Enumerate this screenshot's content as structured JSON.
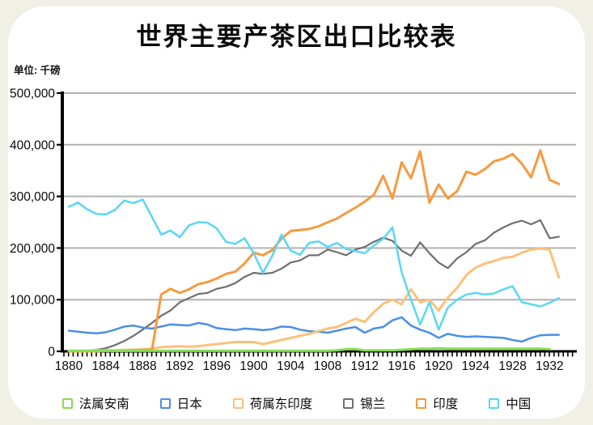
{
  "page": {
    "background_color": "#f0f0e7",
    "card_color": "#ffffff"
  },
  "header": {
    "title": "世界主要产茶区出口比较表",
    "unit_label": "单位: 千磅"
  },
  "chart_data": {
    "type": "line",
    "title": "世界主要产茶区出口比较表",
    "unit": "千磅",
    "xlabel": "",
    "ylabel": "",
    "ylim": [
      0,
      500000
    ],
    "grid": "horizontal-only",
    "legend_position": "bottom",
    "y_ticks": [
      0,
      100000,
      200000,
      300000,
      400000,
      500000
    ],
    "y_tick_labels": [
      "0",
      "100,000",
      "200,000",
      "300,000",
      "400,000",
      "500,000"
    ],
    "x_tick_labels": [
      "1880",
      "1884",
      "1888",
      "1892",
      "1896",
      "1900",
      "1904",
      "1908",
      "1912",
      "1916",
      "1920",
      "1924",
      "1928",
      "1932"
    ],
    "x": [
      1880,
      1881,
      1882,
      1883,
      1884,
      1885,
      1886,
      1887,
      1888,
      1889,
      1890,
      1891,
      1892,
      1893,
      1894,
      1895,
      1896,
      1897,
      1898,
      1899,
      1900,
      1901,
      1902,
      1903,
      1904,
      1905,
      1906,
      1907,
      1908,
      1909,
      1910,
      1911,
      1912,
      1913,
      1914,
      1915,
      1916,
      1917,
      1918,
      1919,
      1920,
      1921,
      1922,
      1923,
      1924,
      1925,
      1926,
      1927,
      1928,
      1929,
      1930,
      1931,
      1932,
      1933
    ],
    "series": [
      {
        "id": "french-annam",
        "name": "法属安南",
        "color": "#85de54",
        "stroke_width": 3,
        "values": [
          1000,
          1000,
          1000,
          1000,
          1000,
          1000,
          1000,
          1000,
          1000,
          1000,
          1000,
          1000,
          1000,
          1000,
          1000,
          1000,
          1000,
          1000,
          1000,
          1000,
          1000,
          1000,
          1000,
          1000,
          1000,
          1000,
          1000,
          1000,
          1000,
          2000,
          4000,
          4000,
          2000,
          2000,
          2000,
          2000,
          3000,
          4000,
          5000,
          5000,
          6000,
          5000,
          5000,
          5000,
          5000,
          5000,
          5000,
          5000,
          5000,
          5000,
          5000,
          5000,
          4000,
          null
        ]
      },
      {
        "id": "japan",
        "name": "日本",
        "color": "#4a8fe8",
        "stroke_width": 2.5,
        "values": [
          40000,
          38000,
          36000,
          35000,
          37000,
          42000,
          48000,
          50000,
          46000,
          44000,
          48000,
          52000,
          51000,
          50000,
          55000,
          52000,
          45000,
          43000,
          41000,
          44000,
          43000,
          41000,
          43000,
          48000,
          47000,
          42000,
          39000,
          38000,
          36000,
          40000,
          44000,
          47000,
          36000,
          44000,
          47000,
          60000,
          66000,
          50000,
          42000,
          36000,
          26000,
          34000,
          30000,
          28000,
          29000,
          28000,
          27000,
          26000,
          22000,
          19000,
          26000,
          31000,
          32000,
          32000
        ]
      },
      {
        "id": "dutch-east-indies",
        "name": "荷属东印度",
        "color": "#fcc178",
        "stroke_width": 3,
        "values": [
          1000,
          1000,
          1000,
          2000,
          2000,
          2000,
          3000,
          3000,
          4000,
          5000,
          8000,
          9000,
          10000,
          9000,
          10000,
          12000,
          14000,
          16000,
          18000,
          18000,
          18000,
          14000,
          18000,
          22000,
          26000,
          30000,
          34000,
          39000,
          44000,
          47000,
          55000,
          63000,
          57000,
          76000,
          92000,
          100000,
          91000,
          120000,
          95000,
          100000,
          79000,
          104000,
          123000,
          148000,
          162000,
          170000,
          175000,
          181000,
          183000,
          191000,
          197000,
          199000,
          197000,
          143000
        ]
      },
      {
        "id": "ceylon",
        "name": "锡兰",
        "color": "#6f6f6f",
        "stroke_width": 2.2,
        "values": [
          0,
          0,
          1000,
          3000,
          6000,
          12000,
          20000,
          30000,
          42000,
          55000,
          69000,
          79000,
          95000,
          103000,
          111000,
          113000,
          121000,
          125000,
          132000,
          144000,
          152000,
          150000,
          152000,
          160000,
          172000,
          176000,
          186000,
          186000,
          197000,
          192000,
          186000,
          197000,
          202000,
          212000,
          220000,
          214000,
          195000,
          185000,
          211000,
          190000,
          172000,
          161000,
          180000,
          192000,
          208000,
          215000,
          230000,
          240000,
          248000,
          253000,
          246000,
          254000,
          219000,
          222000
        ]
      },
      {
        "id": "india",
        "name": "印度",
        "color": "#f79a3e",
        "stroke_width": 3,
        "values": [
          0,
          0,
          0,
          0,
          1000,
          1000,
          1000,
          2000,
          2000,
          3000,
          110000,
          121000,
          113000,
          120000,
          130000,
          134000,
          141000,
          150000,
          154000,
          170000,
          191000,
          186000,
          196000,
          218000,
          233000,
          235000,
          237000,
          242000,
          250000,
          257000,
          268000,
          278000,
          290000,
          303000,
          340000,
          296000,
          366000,
          335000,
          387000,
          288000,
          323000,
          296000,
          310000,
          348000,
          342000,
          353000,
          368000,
          373000,
          382000,
          363000,
          337000,
          389000,
          332000,
          324000
        ]
      },
      {
        "id": "china",
        "name": "中国",
        "color": "#58d7f7",
        "stroke_width": 2.5,
        "values": [
          280000,
          288000,
          275000,
          266000,
          265000,
          274000,
          292000,
          287000,
          294000,
          260000,
          226000,
          234000,
          221000,
          244000,
          250000,
          249000,
          238000,
          212000,
          208000,
          219000,
          190000,
          152000,
          185000,
          226000,
          195000,
          187000,
          210000,
          213000,
          202000,
          210000,
          198000,
          194000,
          190000,
          205000,
          218000,
          240000,
          153000,
          100000,
          52000,
          95000,
          42000,
          85000,
          100000,
          110000,
          113000,
          110000,
          112000,
          120000,
          126000,
          95000,
          91000,
          87000,
          94000,
          103000
        ]
      }
    ]
  }
}
